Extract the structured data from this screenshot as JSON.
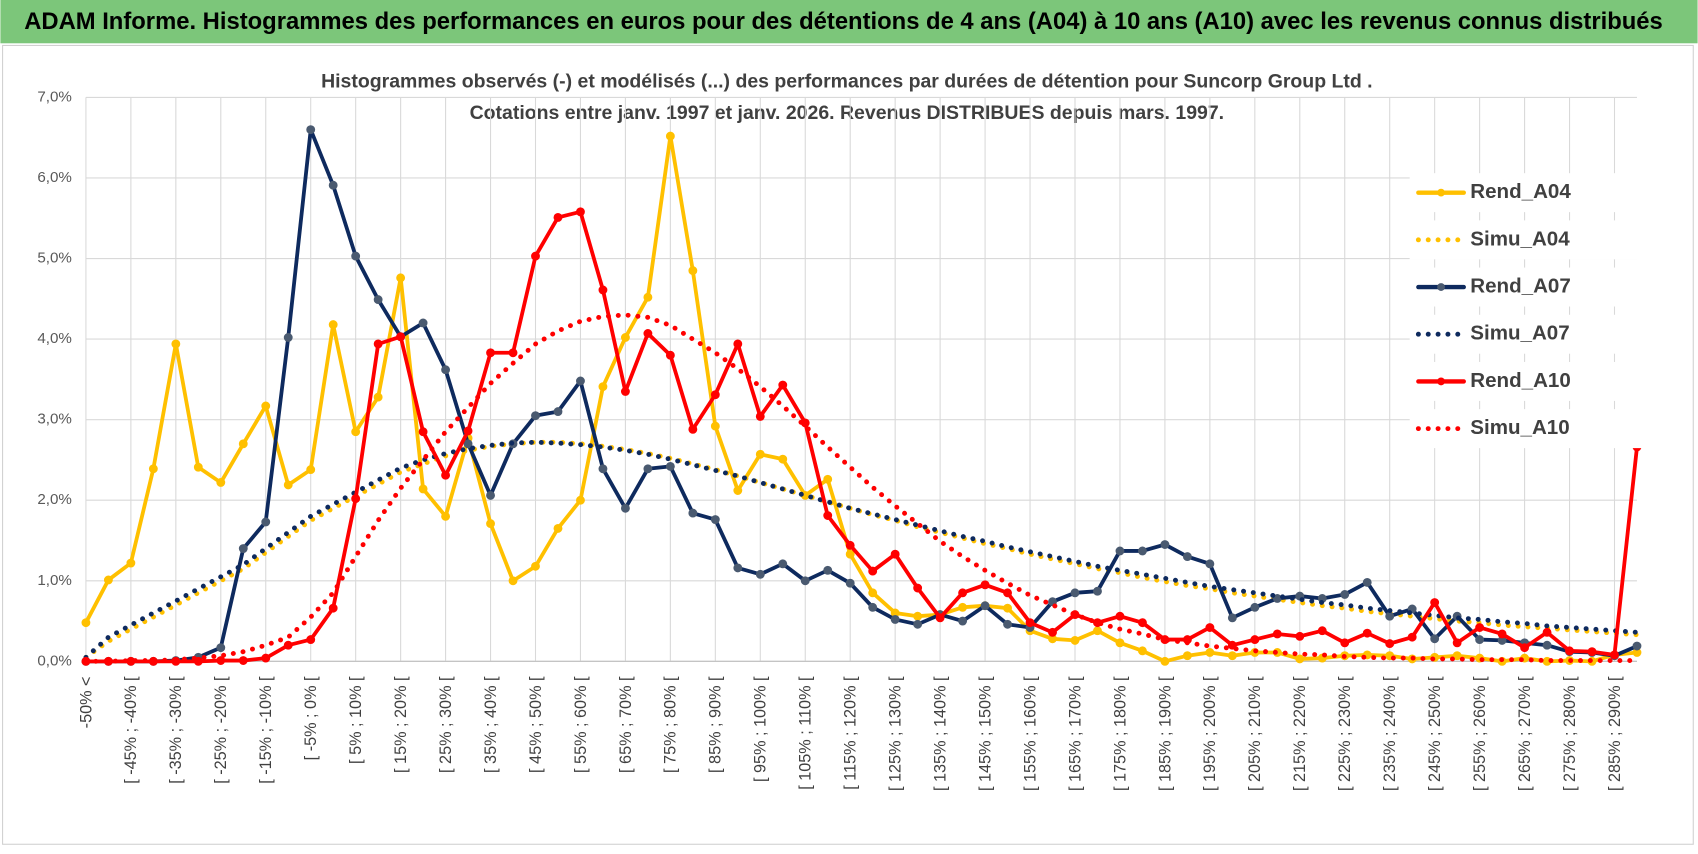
{
  "header": {
    "title": "ADAM Informe. Histogrammes des performances en euros pour des détentions de 4 ans (A04) à 10 ans (A10) avec les revenus connus distribués"
  },
  "chart_data": {
    "type": "line",
    "title": "Histogrammes observés (-) et modélisés (...) des performances par durées de détention pour Suncorp Group Ltd .",
    "subtitle": "Cotations entre janv. 1997 et janv. 2026. Revenus DISTRIBUES depuis mars. 1997.",
    "categories": [
      "-50% <",
      null,
      "[ -45% ; -40% [",
      null,
      "[ -35% ; -30% [",
      null,
      "[ -25% ; -20% [",
      null,
      "[ -15% ; -10% [",
      null,
      "[ -5% ; 0% [",
      null,
      "[ 5% ; 10% [",
      null,
      "[ 15% ; 20% [",
      null,
      "[ 25% ; 30% [",
      null,
      "[ 35% ; 40% [",
      null,
      "[ 45% ; 50% [",
      null,
      "[ 55% ; 60% [",
      null,
      "[ 65% ; 70% [",
      null,
      "[ 75% ; 80% [",
      null,
      "[ 85% ; 90% [",
      null,
      "[ 95% ; 100% [",
      null,
      "[ 105% ; 110% [",
      null,
      "[ 115% ; 120% [",
      null,
      "[ 125% ; 130% [",
      null,
      "[ 135% ; 140% [",
      null,
      "[ 145% ; 150% [",
      null,
      "[ 155% ; 160% [",
      null,
      "[ 165% ; 170% [",
      null,
      "[ 175% ; 180% [",
      null,
      "[ 185% ; 190% [",
      null,
      "[ 195% ; 200% [",
      null,
      "[ 205% ; 210% [",
      null,
      "[ 215% ; 220% [",
      null,
      "[ 225% ; 230% [",
      null,
      "[ 235% ; 240% [",
      null,
      "[ 245% ; 250% [",
      null,
      "[ 255% ; 260% [",
      null,
      "[ 265% ; 270% [",
      null,
      "[ 275% ; 280% [",
      null,
      "[ 285% ; 290% [",
      null
    ],
    "ylim": [
      0,
      7
    ],
    "yticks": [
      {
        "value": 0,
        "label": "0,0%"
      },
      {
        "value": 1,
        "label": "1,0%"
      },
      {
        "value": 2,
        "label": "2,0%"
      },
      {
        "value": 3,
        "label": "3,0%"
      },
      {
        "value": 4,
        "label": "4,0%"
      },
      {
        "value": 5,
        "label": "5,0%"
      },
      {
        "value": 6,
        "label": "6,0%"
      },
      {
        "value": 7,
        "label": "7,0%"
      }
    ],
    "grid": true,
    "legend": "right",
    "series": [
      {
        "name": "Rend_A04",
        "color": "#ffc000",
        "dotted": false,
        "markers": true,
        "values": [
          0.48,
          1.01,
          1.22,
          2.39,
          3.94,
          2.41,
          2.22,
          2.7,
          3.17,
          2.19,
          2.38,
          4.18,
          2.85,
          3.28,
          4.76,
          2.14,
          1.8,
          2.77,
          1.71,
          1.0,
          1.18,
          1.65,
          2.0,
          3.41,
          4.02,
          4.52,
          6.52,
          4.85,
          2.92,
          2.12,
          2.57,
          2.51,
          2.06,
          2.26,
          1.33,
          0.85,
          0.6,
          0.56,
          0.58,
          0.67,
          0.69,
          0.66,
          0.38,
          0.28,
          0.26,
          0.38,
          0.23,
          0.13,
          0,
          0.07,
          0.11,
          0.07,
          0.11,
          0.11,
          0.03,
          0.04,
          0.07,
          0.08,
          0.07,
          0.03,
          0.05,
          0.07,
          0.04,
          0,
          0.04,
          0,
          0.01,
          0,
          0.08,
          0.11
        ]
      },
      {
        "name": "Simu_A04",
        "color": "#ffc000",
        "dotted": true,
        "markers": false,
        "values": [
          0.05,
          0.25,
          0.4,
          0.55,
          0.7,
          0.85,
          1.0,
          1.15,
          1.35,
          1.55,
          1.75,
          1.9,
          2.05,
          2.2,
          2.35,
          2.45,
          2.55,
          2.62,
          2.67,
          2.7,
          2.72,
          2.72,
          2.7,
          2.67,
          2.63,
          2.58,
          2.52,
          2.45,
          2.38,
          2.3,
          2.22,
          2.14,
          2.06,
          1.98,
          1.9,
          1.82,
          1.75,
          1.67,
          1.6,
          1.53,
          1.46,
          1.4,
          1.33,
          1.27,
          1.21,
          1.15,
          1.1,
          1.04,
          0.99,
          0.94,
          0.9,
          0.85,
          0.81,
          0.77,
          0.73,
          0.69,
          0.66,
          0.62,
          0.59,
          0.56,
          0.53,
          0.5,
          0.48,
          0.45,
          0.43,
          0.41,
          0.39,
          0.37,
          0.35,
          0.33
        ]
      },
      {
        "name": "Rend_A07",
        "color": "#0e2a5e",
        "marker_color": "#4a5a70",
        "dotted": false,
        "markers": true,
        "values": [
          0,
          0,
          0,
          0,
          0.01,
          0.05,
          0.17,
          1.4,
          1.73,
          4.02,
          6.6,
          5.91,
          5.03,
          4.49,
          4.03,
          4.2,
          3.62,
          2.7,
          2.06,
          2.7,
          3.05,
          3.1,
          3.48,
          2.39,
          1.9,
          2.39,
          2.42,
          1.84,
          1.76,
          1.16,
          1.08,
          1.21,
          1.0,
          1.13,
          0.97,
          0.67,
          0.52,
          0.46,
          0.58,
          0.5,
          0.69,
          0.46,
          0.42,
          0.74,
          0.85,
          0.87,
          1.37,
          1.37,
          1.45,
          1.3,
          1.21,
          0.54,
          0.67,
          0.78,
          0.81,
          0.78,
          0.83,
          0.98,
          0.56,
          0.65,
          0.28,
          0.56,
          0.27,
          0.26,
          0.23,
          0.2,
          0.12,
          0.11,
          0.07,
          0.19
        ]
      },
      {
        "name": "Simu_A07",
        "color": "#0e2a5e",
        "dotted": true,
        "markers": false,
        "values": [
          0.05,
          0.3,
          0.45,
          0.6,
          0.75,
          0.9,
          1.05,
          1.2,
          1.4,
          1.6,
          1.8,
          1.95,
          2.1,
          2.25,
          2.4,
          2.5,
          2.58,
          2.64,
          2.68,
          2.71,
          2.72,
          2.71,
          2.69,
          2.66,
          2.62,
          2.57,
          2.51,
          2.44,
          2.37,
          2.3,
          2.22,
          2.14,
          2.06,
          1.98,
          1.9,
          1.83,
          1.76,
          1.69,
          1.62,
          1.55,
          1.49,
          1.42,
          1.36,
          1.3,
          1.24,
          1.18,
          1.13,
          1.08,
          1.03,
          0.98,
          0.93,
          0.89,
          0.85,
          0.81,
          0.77,
          0.73,
          0.7,
          0.66,
          0.63,
          0.6,
          0.57,
          0.54,
          0.52,
          0.49,
          0.47,
          0.44,
          0.42,
          0.4,
          0.38,
          0.36
        ]
      },
      {
        "name": "Rend_A10",
        "color": "#ff0000",
        "dotted": false,
        "markers": true,
        "values": [
          0,
          0,
          0,
          0,
          0,
          0,
          0.01,
          0.01,
          0.04,
          0.2,
          0.27,
          0.66,
          2.02,
          3.94,
          4.03,
          2.85,
          2.31,
          2.86,
          3.83,
          3.83,
          5.03,
          5.51,
          5.58,
          4.61,
          3.35,
          4.07,
          3.8,
          2.88,
          3.31,
          3.94,
          3.04,
          3.43,
          2.96,
          1.81,
          1.44,
          1.12,
          1.33,
          0.91,
          0.54,
          0.85,
          0.95,
          0.85,
          0.48,
          0.36,
          0.58,
          0.48,
          0.56,
          0.48,
          0.27,
          0.27,
          0.42,
          0.2,
          0.27,
          0.34,
          0.31,
          0.38,
          0.23,
          0.35,
          0.22,
          0.3,
          0.73,
          0.23,
          0.42,
          0.34,
          0.17,
          0.36,
          0.13,
          0.12,
          0.08,
          2.66
        ]
      },
      {
        "name": "Simu_A10",
        "color": "#ff0000",
        "dotted": true,
        "markers": false,
        "values": [
          0,
          0,
          0.01,
          0.01,
          0.02,
          0.04,
          0.07,
          0.12,
          0.2,
          0.3,
          0.55,
          0.85,
          1.3,
          1.75,
          2.15,
          2.5,
          2.85,
          3.15,
          3.45,
          3.7,
          3.94,
          4.1,
          4.22,
          4.28,
          4.3,
          4.27,
          4.17,
          4.0,
          3.83,
          3.63,
          3.41,
          3.17,
          2.92,
          2.66,
          2.41,
          2.16,
          1.93,
          1.71,
          1.49,
          1.3,
          1.13,
          0.97,
          0.82,
          0.7,
          0.58,
          0.48,
          0.4,
          0.34,
          0.27,
          0.23,
          0.19,
          0.16,
          0.13,
          0.11,
          0.09,
          0.08,
          0.06,
          0.05,
          0.04,
          0.04,
          0.03,
          0.03,
          0.02,
          0.02,
          0.02,
          0.01,
          0.01,
          0.01,
          0.01,
          0.01
        ]
      }
    ]
  }
}
